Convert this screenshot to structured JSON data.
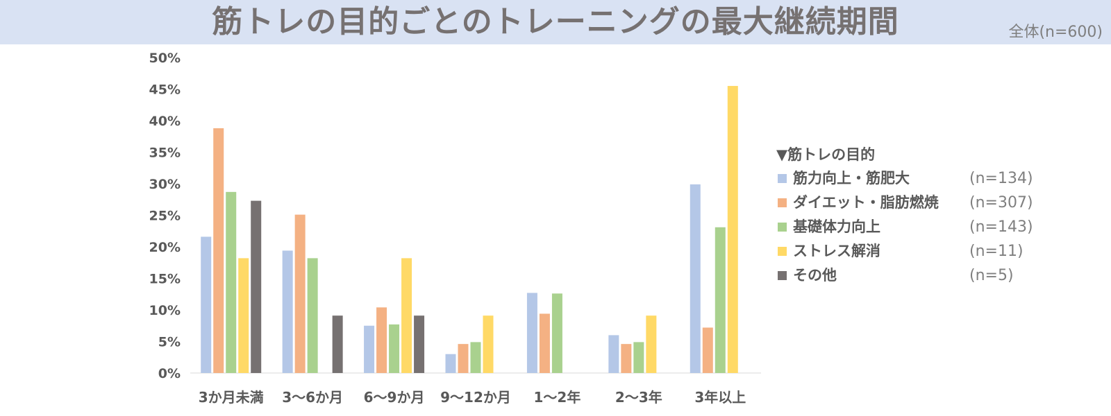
{
  "header": {
    "title": "筋トレの目的ごとのトレーニングの最大継続期間",
    "subtitle": "全体(n=600)"
  },
  "legend": {
    "title": "▼筋トレの目的",
    "items": [
      {
        "label": "筋力向上・筋肥大",
        "n": "(n=134)",
        "color": "#b4c7e7"
      },
      {
        "label": "ダイエット・脂肪燃焼",
        "n": "(n=307)",
        "color": "#f4b183"
      },
      {
        "label": "基礎体力向上",
        "n": "(n=143)",
        "color": "#a9d18e"
      },
      {
        "label": "ストレス解消",
        "n": "(n=11)",
        "color": "#ffd966"
      },
      {
        "label": "その他",
        "n": "(n=5)",
        "color": "#767171"
      }
    ]
  },
  "chart_data": {
    "type": "bar",
    "title": "筋トレの目的ごとのトレーニングの最大継続期間",
    "categories": [
      "3か月未満",
      "3〜6か月",
      "6〜9か月",
      "9〜12か月",
      "1〜2年",
      "2〜3年",
      "3年以上"
    ],
    "series": [
      {
        "name": "筋力向上・筋肥大",
        "values": [
          21.6,
          19.4,
          7.5,
          3.0,
          12.7,
          6.0,
          29.9
        ]
      },
      {
        "name": "ダイエット・脂肪燃焼",
        "values": [
          38.8,
          25.1,
          10.4,
          4.6,
          9.4,
          4.6,
          7.2
        ]
      },
      {
        "name": "基礎体力向上",
        "values": [
          28.7,
          18.2,
          7.7,
          4.9,
          12.6,
          4.9,
          23.1
        ]
      },
      {
        "name": "ストレス解消",
        "values": [
          18.2,
          0,
          18.2,
          9.1,
          0,
          9.1,
          45.5
        ]
      },
      {
        "name": "その他",
        "values": [
          27.3,
          9.1,
          9.1,
          0,
          0,
          0,
          0
        ]
      }
    ],
    "yticks": [
      "0%",
      "5%",
      "10%",
      "15%",
      "20%",
      "25%",
      "30%",
      "35%",
      "40%",
      "45%",
      "50%"
    ],
    "ylim": [
      0,
      50
    ],
    "xlabel": "",
    "ylabel": "",
    "grid": false
  }
}
